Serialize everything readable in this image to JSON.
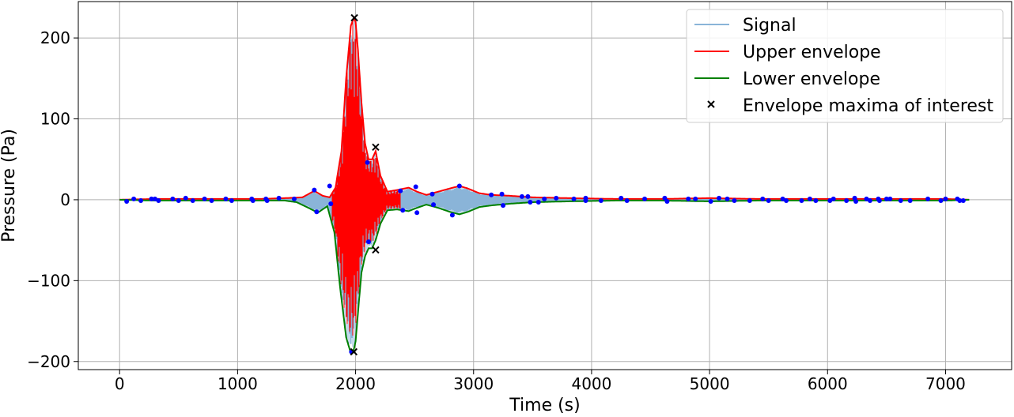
{
  "chart_data": {
    "type": "line",
    "title": "",
    "xlabel": "Time (s)",
    "ylabel": "Pressure (Pa)",
    "xlim": [
      -350,
      7560
    ],
    "ylim": [
      -210,
      245
    ],
    "grid": true,
    "legend_position": "top-right",
    "x_ticks": [
      0,
      1000,
      2000,
      3000,
      4000,
      5000,
      6000,
      7000
    ],
    "x_tick_labels": [
      "0",
      "1000",
      "2000",
      "3000",
      "4000",
      "5000",
      "6000",
      "7000"
    ],
    "y_ticks": [
      200,
      100,
      0,
      -100,
      -200
    ],
    "y_tick_labels": [
      "200",
      "100",
      "0",
      "−100",
      "−200"
    ],
    "series": [
      {
        "name": "Signal",
        "kind": "filled-oscillation",
        "color": "#8ab4d8"
      },
      {
        "name": "Upper envelope",
        "kind": "line",
        "color": "#ff0000"
      },
      {
        "name": "Lower envelope",
        "kind": "line",
        "color": "#008000"
      },
      {
        "name": "Envelope maxima of interest",
        "kind": "marker-x",
        "color": "#000000"
      }
    ],
    "upper_envelope": {
      "x": [
        0,
        300,
        600,
        900,
        1200,
        1400,
        1550,
        1650,
        1720,
        1780,
        1830,
        1880,
        1920,
        1960,
        1985,
        2000,
        2020,
        2050,
        2080,
        2110,
        2140,
        2170,
        2210,
        2270,
        2350,
        2450,
        2520,
        2600,
        2700,
        2800,
        2880,
        2950,
        3050,
        3150,
        3300,
        3500,
        3800,
        4200,
        4600,
        5000,
        5400,
        5800,
        6200,
        6600,
        7000,
        7200
      ],
      "y": [
        0,
        1,
        1,
        1,
        1,
        2,
        3,
        11,
        5,
        3,
        15,
        60,
        150,
        215,
        225,
        220,
        185,
        120,
        70,
        50,
        50,
        60,
        30,
        10,
        12,
        15,
        10,
        6,
        10,
        14,
        17,
        14,
        8,
        6,
        5,
        3,
        2,
        1,
        1,
        2,
        1,
        1,
        1,
        1,
        1,
        0
      ]
    },
    "lower_envelope": {
      "x": [
        0,
        300,
        600,
        900,
        1200,
        1400,
        1500,
        1600,
        1680,
        1760,
        1820,
        1870,
        1920,
        1960,
        1985,
        2000,
        2020,
        2050,
        2080,
        2110,
        2140,
        2170,
        2210,
        2270,
        2350,
        2450,
        2520,
        2600,
        2700,
        2800,
        2880,
        2950,
        3050,
        3150,
        3300,
        3500,
        3800,
        4200,
        4600,
        5000,
        5400,
        5800,
        6200,
        6600,
        7000,
        7200
      ],
      "y": [
        0,
        -1,
        -1,
        -1,
        -1,
        -1,
        -3,
        -10,
        -16,
        -8,
        -40,
        -110,
        -170,
        -190,
        -185,
        -175,
        -140,
        -90,
        -70,
        -60,
        -60,
        -50,
        -30,
        -13,
        -12,
        -14,
        -10,
        -6,
        -10,
        -15,
        -18,
        -15,
        -9,
        -7,
        -5,
        -3,
        -2,
        -1,
        -1,
        -2,
        -1,
        -1,
        -1,
        -1,
        -1,
        0
      ]
    },
    "envelope_maxima": [
      {
        "x": 1990,
        "y": 225
      },
      {
        "x": 2170,
        "y": 65
      },
      {
        "x": 2170,
        "y": -62
      },
      {
        "x": 1985,
        "y": -188
      }
    ],
    "extrema_points": [
      [
        60,
        -2
      ],
      [
        120,
        1
      ],
      [
        180,
        -1
      ],
      [
        270,
        1
      ],
      [
        300,
        1
      ],
      [
        330,
        -1
      ],
      [
        450,
        1
      ],
      [
        500,
        -1
      ],
      [
        560,
        2
      ],
      [
        620,
        -1
      ],
      [
        720,
        1
      ],
      [
        780,
        -1
      ],
      [
        900,
        1
      ],
      [
        950,
        -1
      ],
      [
        1120,
        1
      ],
      [
        1130,
        -1
      ],
      [
        1240,
        1
      ],
      [
        1250,
        -1
      ],
      [
        1350,
        2
      ],
      [
        1480,
        1
      ],
      [
        1650,
        12
      ],
      [
        1670,
        -15
      ],
      [
        1780,
        17
      ],
      [
        1790,
        -5
      ],
      [
        1965,
        -188
      ],
      [
        2100,
        46
      ],
      [
        2110,
        -52
      ],
      [
        2380,
        11
      ],
      [
        2400,
        -13
      ],
      [
        2510,
        16
      ],
      [
        2520,
        -16
      ],
      [
        2650,
        7
      ],
      [
        2660,
        -6
      ],
      [
        2820,
        -19
      ],
      [
        2880,
        17
      ],
      [
        3150,
        6
      ],
      [
        3240,
        7
      ],
      [
        3250,
        -7
      ],
      [
        3410,
        4
      ],
      [
        3460,
        4
      ],
      [
        3480,
        -3
      ],
      [
        3550,
        -3
      ],
      [
        3600,
        1
      ],
      [
        3700,
        2
      ],
      [
        3850,
        1
      ],
      [
        3950,
        2
      ],
      [
        3950,
        -1
      ],
      [
        4080,
        -1
      ],
      [
        4250,
        2
      ],
      [
        4300,
        -1
      ],
      [
        4450,
        1
      ],
      [
        4620,
        2
      ],
      [
        4640,
        -2
      ],
      [
        4820,
        1
      ],
      [
        4880,
        1
      ],
      [
        5010,
        -2
      ],
      [
        5080,
        2
      ],
      [
        5150,
        1
      ],
      [
        5210,
        -1
      ],
      [
        5340,
        -1
      ],
      [
        5450,
        1
      ],
      [
        5500,
        -1
      ],
      [
        5620,
        1
      ],
      [
        5650,
        -1
      ],
      [
        5780,
        -1
      ],
      [
        5850,
        1
      ],
      [
        5900,
        -1
      ],
      [
        6020,
        -1
      ],
      [
        6050,
        1
      ],
      [
        6160,
        -1
      ],
      [
        6230,
        2
      ],
      [
        6240,
        -2
      ],
      [
        6330,
        1
      ],
      [
        6360,
        -1
      ],
      [
        6430,
        1
      ],
      [
        6440,
        -1
      ],
      [
        6500,
        1
      ],
      [
        6530,
        1
      ],
      [
        6620,
        -1
      ],
      [
        6700,
        -1
      ],
      [
        6850,
        1
      ],
      [
        6960,
        -1
      ],
      [
        7000,
        1
      ],
      [
        7100,
        1
      ],
      [
        7120,
        -1
      ],
      [
        7150,
        -1
      ]
    ]
  }
}
